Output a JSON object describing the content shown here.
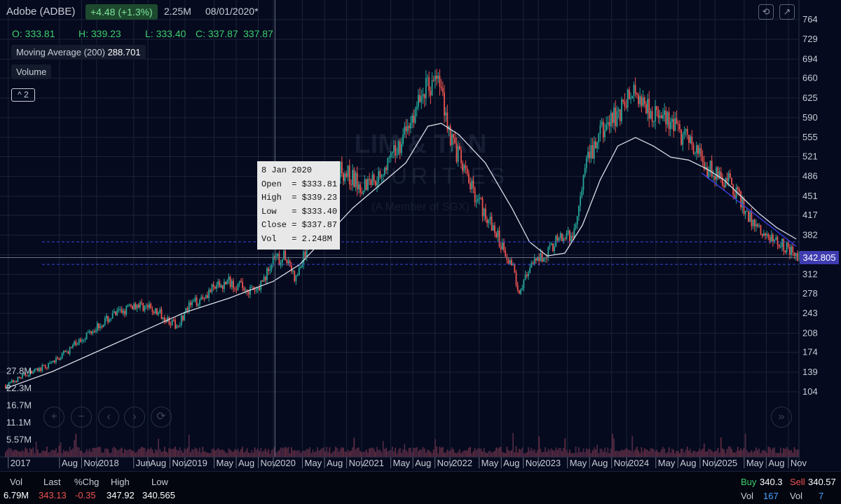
{
  "header": {
    "title": "Adobe (ADBE)",
    "change": "+4.48 (+1.3%)",
    "volume": "2.25M",
    "date": "08/01/2020*",
    "open": "O: 333.81",
    "high": "H: 339.23",
    "low": "L: 333.40",
    "close": "C: 337.87",
    "last": "337.87",
    "moving_average_label": "Moving Average (200)",
    "moving_average_value": "288.701",
    "volume_label": "Volume",
    "collapse_label": "^ 2"
  },
  "tooltip": {
    "date": "8 Jan 2020",
    "open": "Open  = $333.81",
    "high": "High  = $339.23",
    "low": "Low   = $333.40",
    "close": "Close = $337.87",
    "vol": "Vol   = 2.248M"
  },
  "watermark": {
    "line1": "LIM & TAN",
    "line2": "SECURITIES",
    "line3": "(A Member of SGX)"
  },
  "current_price_tag": "342.805",
  "footer": {
    "vol_label": "Vol",
    "vol_value": "6.79M",
    "last_label": "Last",
    "last_value": "343.13",
    "chg_label": "%Chg",
    "chg_value": "-0.35",
    "high_label": "High",
    "high_value": "347.92",
    "low_label": "Low",
    "low_value": "340.565",
    "buy_label": "Buy",
    "buy_value": "340.3",
    "sell_label": "Sell",
    "sell_value": "340.57",
    "buyvol_label": "Vol",
    "buyvol_value": "167",
    "sellvol_label": "Vol",
    "sellvol_value": "7"
  },
  "colors": {
    "background": "#050a1e",
    "up": "#26a69a",
    "down": "#ef5350",
    "moving_average": "#d9dde6",
    "grid": "#1c2438",
    "positive_text": "#3ecf6e",
    "negative_text": "#ef5350",
    "buy_text": "#3ecf6e",
    "sell_text": "#ef5350",
    "vol_value_text": "#4aa3ff"
  },
  "chart_data": {
    "type": "candlestick",
    "ylim": [
      70,
      780
    ],
    "y_ticks": [
      "764",
      "729",
      "694",
      "660",
      "625",
      "590",
      "555",
      "521",
      "486",
      "451",
      "417",
      "382",
      "347",
      "312",
      "278",
      "243",
      "208",
      "174",
      "139",
      "104"
    ],
    "volume_ticks": [
      "27.8M",
      "22.3M",
      "16.7M",
      "11.1M",
      "5.57M"
    ],
    "x_ticks": [
      "2017",
      "Aug",
      "Nov",
      "2018",
      "Jun",
      "Aug",
      "Nov",
      "2019",
      "May",
      "Aug",
      "Nov",
      "2020",
      "May",
      "Aug",
      "Nov",
      "2021",
      "May",
      "Aug",
      "Nov",
      "2022",
      "May",
      "Aug",
      "Nov",
      "2023",
      "May",
      "Aug",
      "Nov",
      "2024",
      "May",
      "Aug",
      "Nov",
      "2025",
      "May",
      "Aug",
      "Nov"
    ],
    "x_tick_dates": [
      2017.0,
      2017.58,
      2017.83,
      2018.0,
      2018.42,
      2018.58,
      2018.83,
      2019.0,
      2019.33,
      2019.58,
      2019.83,
      2020.0,
      2020.33,
      2020.58,
      2020.83,
      2021.0,
      2021.33,
      2021.58,
      2021.83,
      2022.0,
      2022.33,
      2022.58,
      2022.83,
      2023.0,
      2023.33,
      2023.58,
      2023.83,
      2024.0,
      2024.33,
      2024.58,
      2024.83,
      2025.0,
      2025.33,
      2025.58,
      2025.83
    ],
    "price_series": {
      "name": "Adobe (ADBE)",
      "dates": [
        2016.97,
        2017.2,
        2017.45,
        2017.7,
        2017.95,
        2018.2,
        2018.45,
        2018.55,
        2018.75,
        2018.9,
        2019.05,
        2019.3,
        2019.5,
        2019.65,
        2019.8,
        2020.0,
        2020.15,
        2020.25,
        2020.45,
        2020.6,
        2020.75,
        2021.0,
        2021.2,
        2021.35,
        2021.55,
        2021.7,
        2021.87,
        2022.0,
        2022.2,
        2022.4,
        2022.6,
        2022.7,
        2022.78,
        2022.95,
        2023.2,
        2023.4,
        2023.55,
        2023.7,
        2023.95,
        2024.1,
        2024.3,
        2024.55,
        2024.75,
        2024.9,
        2025.05,
        2025.2,
        2025.35,
        2025.55,
        2025.75,
        2025.92
      ],
      "values": [
        115,
        135,
        150,
        180,
        215,
        240,
        260,
        255,
        240,
        220,
        255,
        285,
        300,
        290,
        280,
        335,
        345,
        300,
        390,
        480,
        500,
        470,
        490,
        520,
        580,
        640,
        660,
        560,
        480,
        420,
        360,
        330,
        285,
        330,
        370,
        380,
        510,
        560,
        610,
        640,
        600,
        570,
        540,
        500,
        490,
        470,
        420,
        380,
        370,
        342
      ]
    },
    "moving_average": {
      "name": "Moving Average (200)",
      "dates": [
        2016.97,
        2017.5,
        2018.0,
        2018.5,
        2019.0,
        2019.5,
        2020.0,
        2020.3,
        2020.6,
        2020.9,
        2021.2,
        2021.5,
        2021.75,
        2021.9,
        2022.1,
        2022.4,
        2022.7,
        2022.9,
        2023.1,
        2023.3,
        2023.5,
        2023.7,
        2023.9,
        2024.1,
        2024.3,
        2024.5,
        2024.7,
        2024.9,
        2025.1,
        2025.3,
        2025.5,
        2025.7,
        2025.92
      ],
      "values": [
        110,
        140,
        175,
        210,
        245,
        270,
        300,
        330,
        380,
        430,
        470,
        510,
        575,
        580,
        560,
        510,
        430,
        370,
        345,
        350,
        400,
        480,
        540,
        555,
        540,
        520,
        515,
        500,
        480,
        450,
        420,
        395,
        375
      ]
    },
    "volume_series": {
      "name": "Volume",
      "ylim": [
        0,
        30
      ]
    },
    "horizontal_lines": [
      370,
      330
    ],
    "crosshair": {
      "date": 2020.02,
      "price": 342
    },
    "trend_line": {
      "dates": [
        2024.85,
        2025.92
      ],
      "values": [
        492,
        362
      ]
    },
    "last_price_label_value": 342.805
  }
}
